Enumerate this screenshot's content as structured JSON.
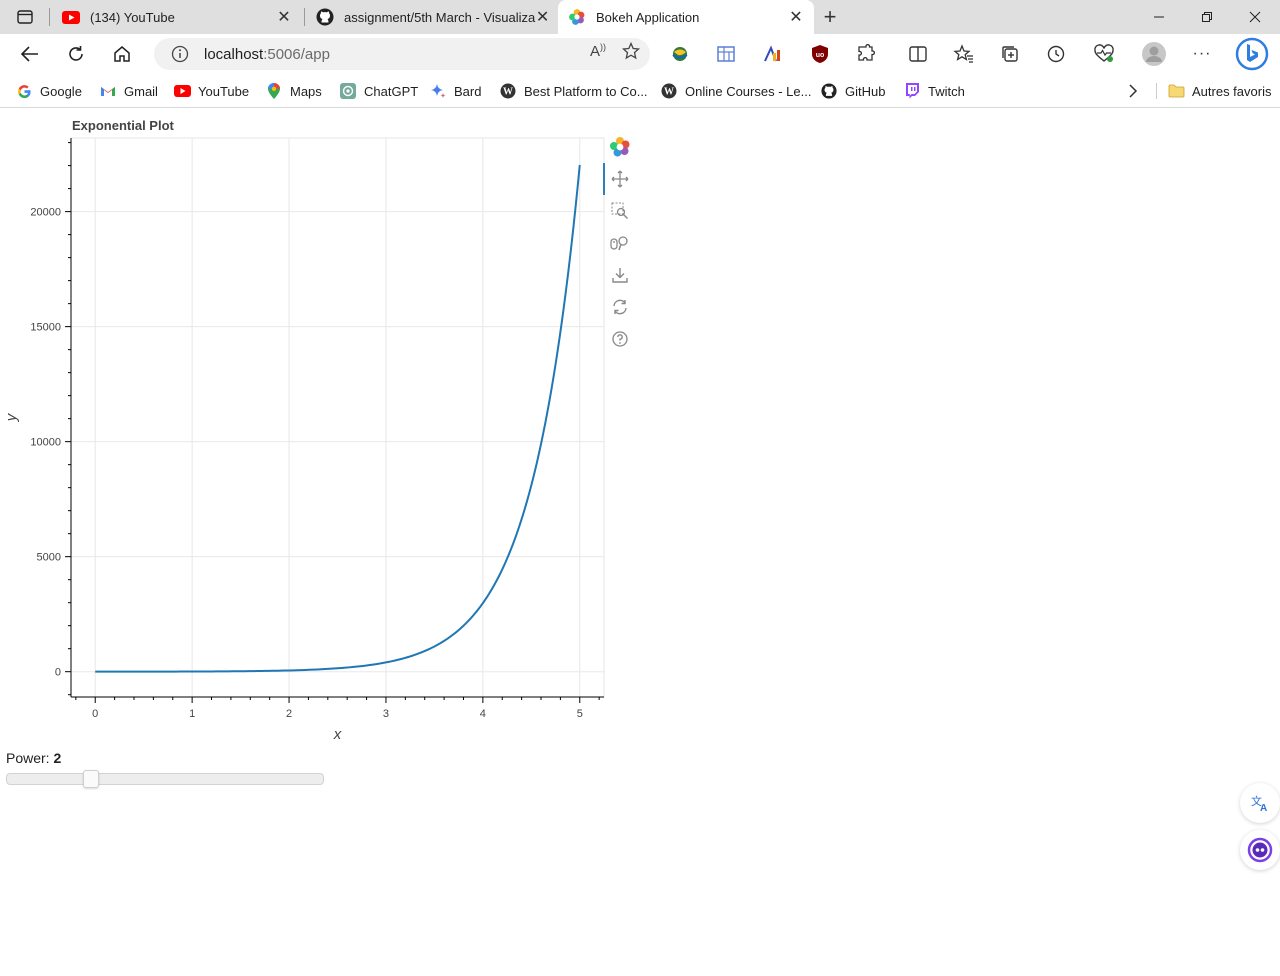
{
  "browser": {
    "tabs": [
      {
        "title": "(134) YouTube",
        "favicon": "youtube-icon"
      },
      {
        "title": "assignment/5th March - Visualiza",
        "favicon": "github-icon"
      },
      {
        "title": "Bokeh Application",
        "favicon": "bokeh-icon",
        "active": true
      }
    ],
    "url_host": "localhost",
    "url_path": ":5006/app",
    "bookmarks": [
      {
        "label": "Google",
        "icon": "google-icon"
      },
      {
        "label": "Gmail",
        "icon": "gmail-icon"
      },
      {
        "label": "YouTube",
        "icon": "youtube-icon"
      },
      {
        "label": "Maps",
        "icon": "maps-icon"
      },
      {
        "label": "ChatGPT",
        "icon": "chatgpt-icon"
      },
      {
        "label": "Bard",
        "icon": "bard-icon"
      },
      {
        "label": "Best Platform to Co...",
        "icon": "wordpress-icon"
      },
      {
        "label": "Online Courses - Le...",
        "icon": "wordpress-icon"
      },
      {
        "label": "GitHub",
        "icon": "github-icon"
      },
      {
        "label": "Twitch",
        "icon": "twitch-icon"
      }
    ],
    "other_favorites": "Autres favoris"
  },
  "app": {
    "power_label": "Power: ",
    "power_value": "2",
    "slider_fraction": 0.25
  },
  "chart_data": {
    "type": "line",
    "title": "Exponential Plot",
    "xlabel": "x",
    "ylabel": "y",
    "xlim": [
      -0.25,
      5.25
    ],
    "ylim": [
      -1100,
      23200
    ],
    "x_ticks": [
      0,
      1,
      2,
      3,
      4,
      5
    ],
    "y_ticks": [
      0,
      5000,
      10000,
      15000,
      20000
    ],
    "grid": true,
    "series": [
      {
        "color": "#1f77b4",
        "x": [
          0,
          0.5,
          1,
          1.5,
          2,
          2.5,
          3,
          3.25,
          3.5,
          3.75,
          4,
          4.25,
          4.5,
          4.75,
          5
        ],
        "y": [
          1,
          2.7,
          7.4,
          20.1,
          54.6,
          148.4,
          403.4,
          665.1,
          1096.6,
          1808.0,
          2981.0,
          4914.8,
          8103.1,
          13359.7,
          22026.5
        ]
      }
    ],
    "toolbar": [
      "bokeh-logo-icon",
      "pan-icon",
      "box-zoom-icon",
      "wheel-zoom-icon",
      "save-icon",
      "reset-icon",
      "help-icon"
    ]
  }
}
